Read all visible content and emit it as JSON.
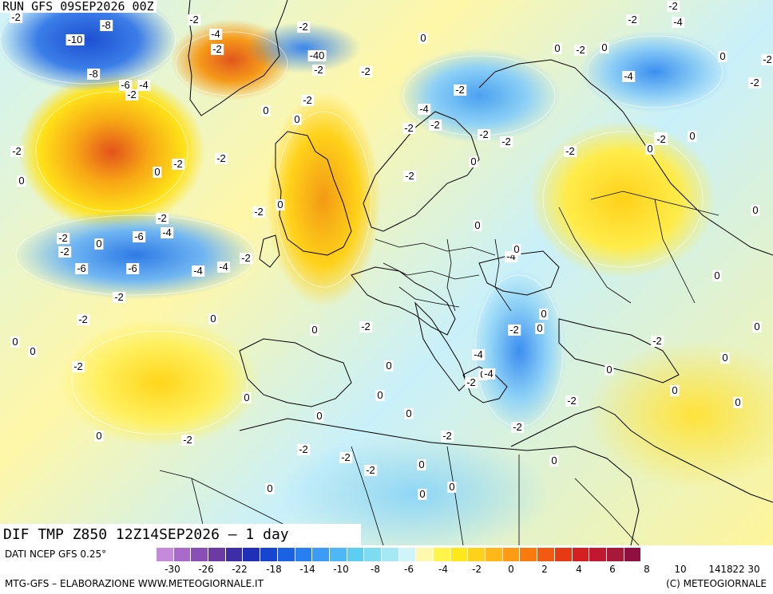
{
  "header": {
    "run_title": "RUN GFS 09SEP2026 00Z",
    "field_title": "DIF TMP Z850 12Z14SEP2026 – 1 day"
  },
  "footer": {
    "data_source": "DATI NCEP GFS 0.25°",
    "credit_left": "MTG-GFS – ELABORAZIONE WWW.METEOGIORNALE.IT",
    "credit_right": "(C) METEOGIORNALE"
  },
  "legend": {
    "colors": [
      "#c58ad9",
      "#a86bc9",
      "#8a4fb6",
      "#6b3aa3",
      "#3c2fa6",
      "#1f2fb8",
      "#1646cf",
      "#1a62e2",
      "#2a7ff0",
      "#3c9cf5",
      "#4eb7f5",
      "#5ecdf2",
      "#7ddcf0",
      "#a6e9f6",
      "#cff5fa",
      "#fff9b0",
      "#fff54a",
      "#ffe81a",
      "#ffd21a",
      "#ffb818",
      "#ff9a14",
      "#fb7a10",
      "#f25a12",
      "#e63a14",
      "#d42020",
      "#c01830",
      "#a81838",
      "#8f1040"
    ],
    "ticks": [
      "-30",
      "-26",
      "-22",
      "-18",
      "-14",
      "-10",
      "-8",
      "-6",
      "-4",
      "-2",
      "0",
      "2",
      "4",
      "6",
      "8",
      "10",
      "14",
      "18",
      "22",
      "30"
    ]
  },
  "map_labels": [
    {
      "text": "-2"
    },
    {
      "text": "-2"
    },
    {
      "text": "-8"
    },
    {
      "text": "-10"
    },
    {
      "text": "-4"
    },
    {
      "text": "-2"
    },
    {
      "text": "-2"
    },
    {
      "text": "-40"
    },
    {
      "text": "-2"
    },
    {
      "text": "-8"
    },
    {
      "text": "-6"
    },
    {
      "text": "-4"
    },
    {
      "text": "-2"
    },
    {
      "text": "-2"
    },
    {
      "text": "-2"
    },
    {
      "text": "0"
    },
    {
      "text": "0"
    },
    {
      "text": "-2"
    },
    {
      "text": "0"
    },
    {
      "text": "-2"
    },
    {
      "text": "-2"
    },
    {
      "text": "-2"
    },
    {
      "text": "-4"
    },
    {
      "text": "-2"
    },
    {
      "text": "-2"
    },
    {
      "text": "-2"
    },
    {
      "text": "-4"
    },
    {
      "text": "-2"
    },
    {
      "text": "0"
    },
    {
      "text": "0"
    },
    {
      "text": "-2"
    },
    {
      "text": "0"
    },
    {
      "text": "-2"
    },
    {
      "text": "0"
    },
    {
      "text": "-2"
    },
    {
      "text": "-2"
    },
    {
      "text": "-2"
    },
    {
      "text": "0"
    },
    {
      "text": "-2"
    },
    {
      "text": "-4"
    },
    {
      "text": "-2"
    },
    {
      "text": "0"
    },
    {
      "text": "0"
    },
    {
      "text": "-2"
    },
    {
      "text": "0"
    },
    {
      "text": "0"
    },
    {
      "text": "0"
    },
    {
      "text": "-2"
    },
    {
      "text": "-2"
    },
    {
      "text": "-6"
    },
    {
      "text": "-4"
    },
    {
      "text": "-2"
    },
    {
      "text": "0"
    },
    {
      "text": "-4"
    },
    {
      "text": "-6"
    },
    {
      "text": "-6"
    },
    {
      "text": "-4"
    },
    {
      "text": "-2"
    },
    {
      "text": "-2"
    },
    {
      "text": "0"
    },
    {
      "text": "0"
    },
    {
      "text": "-2"
    },
    {
      "text": "0"
    },
    {
      "text": "0"
    },
    {
      "text": "0"
    },
    {
      "text": "-2"
    },
    {
      "text": "-2"
    },
    {
      "text": "-4"
    },
    {
      "text": "-2"
    },
    {
      "text": "0"
    },
    {
      "text": "0"
    },
    {
      "text": "0"
    },
    {
      "text": "0"
    },
    {
      "text": "-2"
    },
    {
      "text": "0"
    },
    {
      "text": "0"
    },
    {
      "text": "-4"
    },
    {
      "text": "-2"
    },
    {
      "text": "0"
    },
    {
      "text": "0"
    },
    {
      "text": "0"
    },
    {
      "text": "0"
    },
    {
      "text": "-2"
    },
    {
      "text": "-2"
    },
    {
      "text": "0"
    },
    {
      "text": "-4"
    },
    {
      "text": "-2"
    },
    {
      "text": "0"
    },
    {
      "text": "0"
    },
    {
      "text": "-2"
    },
    {
      "text": "0"
    },
    {
      "text": "-2"
    },
    {
      "text": "-2"
    },
    {
      "text": "-2"
    },
    {
      "text": "0"
    },
    {
      "text": "0"
    },
    {
      "text": "-2"
    },
    {
      "text": "-2"
    },
    {
      "text": "0"
    },
    {
      "text": "0"
    },
    {
      "text": "0"
    },
    {
      "text": "0"
    },
    {
      "text": "0"
    }
  ]
}
